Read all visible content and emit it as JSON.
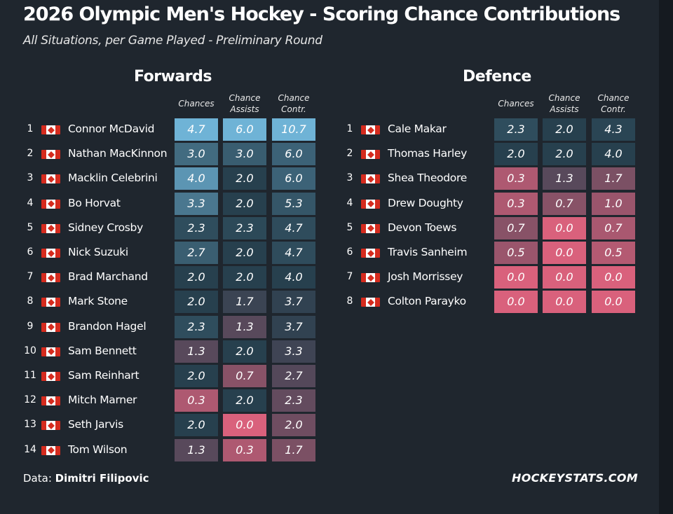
{
  "title": "2026 Olympic Men's Hockey - Scoring Chance Contributions",
  "subtitle": "All Situations, per Game Played - Preliminary Round",
  "columns": [
    {
      "line1": "",
      "line2": "Chances"
    },
    {
      "line1": "Chance",
      "line2": "Assists"
    },
    {
      "line1": "Chance",
      "line2": "Contr."
    }
  ],
  "forwards": {
    "title": "Forwards",
    "rows": [
      {
        "rank": "1",
        "name": "Connor McDavid",
        "chances": "4.7",
        "assists": "6.0",
        "contr": "10.7"
      },
      {
        "rank": "2",
        "name": "Nathan MacKinnon",
        "chances": "3.0",
        "assists": "3.0",
        "contr": "6.0"
      },
      {
        "rank": "3",
        "name": "Macklin Celebrini",
        "chances": "4.0",
        "assists": "2.0",
        "contr": "6.0"
      },
      {
        "rank": "4",
        "name": "Bo Horvat",
        "chances": "3.3",
        "assists": "2.0",
        "contr": "5.3"
      },
      {
        "rank": "5",
        "name": "Sidney Crosby",
        "chances": "2.3",
        "assists": "2.3",
        "contr": "4.7"
      },
      {
        "rank": "6",
        "name": "Nick Suzuki",
        "chances": "2.7",
        "assists": "2.0",
        "contr": "4.7"
      },
      {
        "rank": "7",
        "name": "Brad Marchand",
        "chances": "2.0",
        "assists": "2.0",
        "contr": "4.0"
      },
      {
        "rank": "8",
        "name": "Mark Stone",
        "chances": "2.0",
        "assists": "1.7",
        "contr": "3.7"
      },
      {
        "rank": "9",
        "name": "Brandon Hagel",
        "chances": "2.3",
        "assists": "1.3",
        "contr": "3.7"
      },
      {
        "rank": "10",
        "name": "Sam Bennett",
        "chances": "1.3",
        "assists": "2.0",
        "contr": "3.3"
      },
      {
        "rank": "11",
        "name": "Sam Reinhart",
        "chances": "2.0",
        "assists": "0.7",
        "contr": "2.7"
      },
      {
        "rank": "12",
        "name": "Mitch Marner",
        "chances": "0.3",
        "assists": "2.0",
        "contr": "2.3"
      },
      {
        "rank": "13",
        "name": "Seth Jarvis",
        "chances": "2.0",
        "assists": "0.0",
        "contr": "2.0"
      },
      {
        "rank": "14",
        "name": "Tom Wilson",
        "chances": "1.3",
        "assists": "0.3",
        "contr": "1.7"
      }
    ]
  },
  "defence": {
    "title": "Defence",
    "rows": [
      {
        "rank": "1",
        "name": "Cale Makar",
        "chances": "2.3",
        "assists": "2.0",
        "contr": "4.3"
      },
      {
        "rank": "2",
        "name": "Thomas Harley",
        "chances": "2.0",
        "assists": "2.0",
        "contr": "4.0"
      },
      {
        "rank": "3",
        "name": "Shea Theodore",
        "chances": "0.3",
        "assists": "1.3",
        "contr": "1.7"
      },
      {
        "rank": "4",
        "name": "Drew Doughty",
        "chances": "0.3",
        "assists": "0.7",
        "contr": "1.0"
      },
      {
        "rank": "5",
        "name": "Devon Toews",
        "chances": "0.7",
        "assists": "0.0",
        "contr": "0.7"
      },
      {
        "rank": "6",
        "name": "Travis Sanheim",
        "chances": "0.5",
        "assists": "0.0",
        "contr": "0.5"
      },
      {
        "rank": "7",
        "name": "Josh Morrissey",
        "chances": "0.0",
        "assists": "0.0",
        "contr": "0.0"
      },
      {
        "rank": "8",
        "name": "Colton Parayko",
        "chances": "0.0",
        "assists": "0.0",
        "contr": "0.0"
      }
    ]
  },
  "footer": {
    "label": "Data:",
    "author": "Dimitri Filipovic",
    "brand": "HOCKEYSTATS.COM"
  },
  "colors": {
    "background": "#1f262e",
    "high": "#6fb3d6",
    "mid": "#27404e",
    "low": "#d9617c"
  }
}
